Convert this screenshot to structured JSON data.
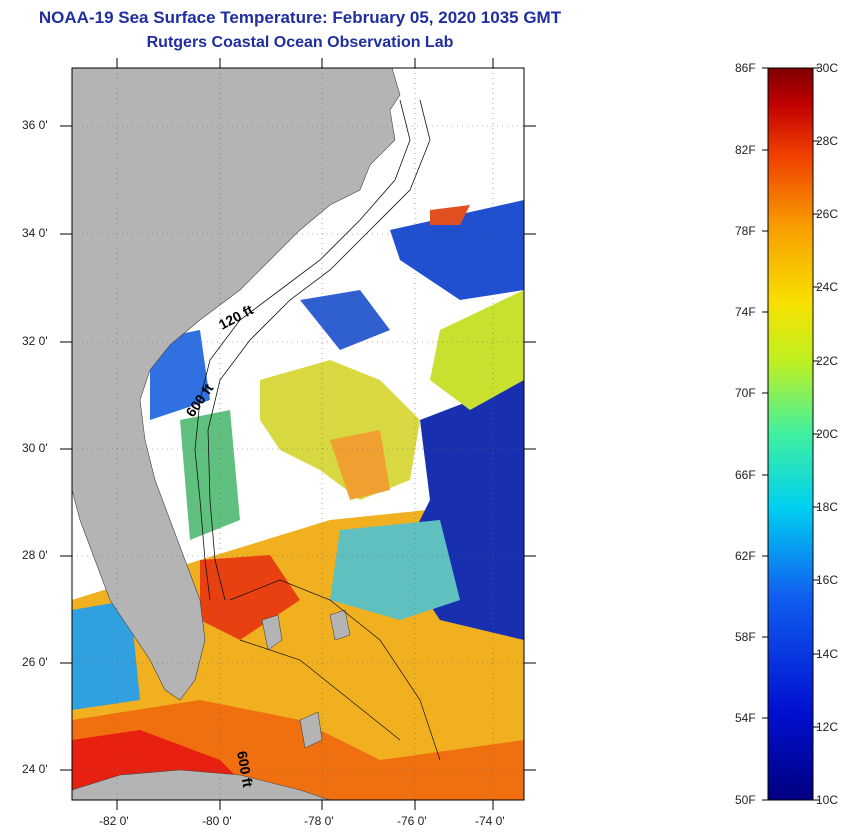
{
  "title": {
    "line1": "NOAA-19 Sea Surface Temperature:  February 05, 2020 1035 GMT",
    "line2": "Rutgers Coastal Ocean Observation Lab"
  },
  "map": {
    "lat_labels": [
      "36 0'",
      "34 0'",
      "32 0'",
      "30 0'",
      "28 0'",
      "26 0'",
      "24 0'"
    ],
    "lon_labels": [
      "-82 0'",
      "-80 0'",
      "-78 0'",
      "-76 0'",
      "-74 0'"
    ],
    "contour_labels": [
      "120 ft",
      "600 ft",
      "600 ft"
    ],
    "colors": {
      "land": "#b4b4b4",
      "cloud": "#ffffff",
      "cold": "#1020b0",
      "cool": "#3a7ae0",
      "mid": "#20d0d0",
      "mild": "#a0e040",
      "warm": "#f0e030",
      "hot": "#f08010",
      "very_hot": "#e02010"
    }
  },
  "colorbar": {
    "fahrenheit_labels": [
      "86F",
      "82F",
      "78F",
      "74F",
      "70F",
      "66F",
      "62F",
      "58F",
      "54F",
      "50F"
    ],
    "celsius_labels": [
      "30C",
      "28C",
      "26C",
      "24C",
      "22C",
      "20C",
      "18C",
      "16C",
      "14C",
      "12C",
      "10C"
    ]
  }
}
